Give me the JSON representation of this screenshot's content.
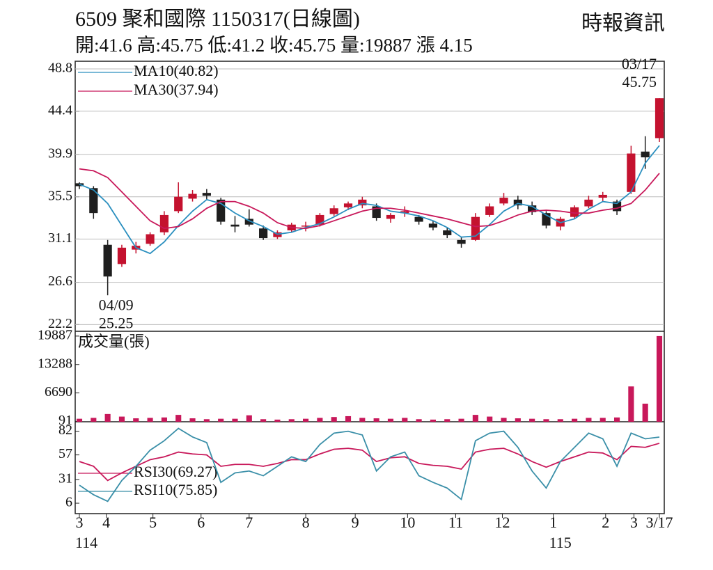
{
  "header": {
    "title": "6509 聚和國際 1150317(日線圖)",
    "source": "時報資訊",
    "quote": "開:41.6 高:45.75 低:41.2 收:45.75 量:19887 漲 4.15"
  },
  "chart_data": [
    {
      "type": "candlestick",
      "xlim": [
        0,
        41
      ],
      "ylim": [
        21.5,
        49.6
      ],
      "yticks": [
        48.8,
        44.4,
        39.9,
        35.5,
        31.1,
        26.6,
        22.2
      ],
      "grid": true,
      "up_color": "#c4122f",
      "down_color": "#1e1e1e",
      "legend": "upper left",
      "open": [
        36.9,
        36.4,
        30.5,
        28.5,
        30.0,
        30.6,
        31.8,
        34.0,
        35.3,
        35.9,
        35.2,
        32.6,
        33.2,
        32.2,
        31.3,
        32.0,
        32.5,
        32.6,
        33.7,
        34.4,
        34.6,
        34.5,
        33.2,
        33.8,
        33.4,
        32.7,
        32.0,
        31.0,
        31.0,
        33.6,
        34.8,
        35.2,
        34.6,
        33.8,
        32.4,
        33.4,
        34.5,
        35.4,
        35.0,
        36.0,
        40.2,
        41.6
      ],
      "high": [
        37.0,
        36.6,
        31.0,
        30.5,
        30.8,
        31.8,
        34.0,
        37.0,
        36.2,
        36.3,
        35.4,
        33.5,
        34.2,
        32.5,
        32.0,
        32.8,
        32.9,
        33.8,
        34.6,
        35.0,
        35.5,
        34.8,
        33.8,
        34.5,
        33.6,
        33.0,
        32.3,
        31.3,
        33.8,
        34.8,
        35.9,
        35.6,
        35.0,
        34.0,
        33.4,
        34.6,
        35.6,
        36.0,
        35.2,
        40.8,
        41.8,
        45.75
      ],
      "low": [
        36.3,
        33.2,
        25.25,
        28.2,
        29.6,
        30.4,
        31.5,
        33.8,
        35.0,
        35.2,
        32.6,
        31.8,
        32.4,
        31.0,
        31.1,
        31.8,
        31.9,
        32.4,
        33.5,
        34.1,
        34.3,
        33.0,
        32.8,
        33.4,
        32.6,
        32.0,
        31.2,
        30.2,
        30.9,
        33.4,
        34.6,
        34.2,
        33.6,
        32.2,
        32.0,
        33.2,
        34.3,
        35.0,
        33.6,
        35.8,
        38.4,
        41.2
      ],
      "close": [
        36.6,
        33.8,
        27.2,
        30.2,
        30.4,
        31.6,
        33.6,
        35.5,
        35.8,
        35.6,
        32.9,
        32.4,
        32.6,
        31.2,
        31.8,
        32.6,
        32.5,
        33.6,
        34.3,
        34.8,
        35.2,
        33.3,
        33.6,
        34.0,
        32.9,
        32.3,
        31.5,
        30.6,
        33.4,
        34.5,
        35.4,
        34.6,
        33.9,
        32.5,
        33.2,
        34.4,
        35.2,
        35.7,
        34.0,
        40.0,
        39.6,
        45.75
      ],
      "series": [
        {
          "name": "MA10(40.82)",
          "color": "#2a8fbf",
          "values": [
            36.8,
            36.2,
            34.8,
            32.5,
            30.2,
            29.6,
            30.8,
            32.5,
            34.0,
            35.2,
            34.8,
            33.8,
            33.0,
            32.4,
            31.6,
            31.8,
            32.3,
            32.7,
            33.4,
            34.2,
            34.8,
            34.6,
            34.0,
            33.8,
            33.5,
            33.0,
            32.3,
            31.3,
            31.4,
            32.6,
            34.0,
            34.8,
            34.5,
            33.6,
            32.8,
            33.2,
            34.2,
            35.0,
            34.8,
            36.0,
            39.0,
            40.82
          ]
        },
        {
          "name": "MA30(37.94)",
          "color": "#c8185a",
          "values": [
            38.4,
            38.2,
            37.5,
            36.0,
            34.5,
            33.0,
            32.2,
            32.4,
            33.2,
            34.3,
            35.0,
            35.0,
            34.5,
            33.8,
            32.8,
            32.3,
            32.2,
            32.5,
            33.0,
            33.5,
            34.0,
            34.3,
            34.3,
            34.1,
            33.8,
            33.5,
            33.2,
            32.8,
            32.4,
            32.5,
            33.0,
            33.6,
            34.0,
            34.1,
            34.0,
            33.8,
            33.8,
            34.1,
            34.3,
            34.8,
            36.2,
            37.94
          ]
        }
      ],
      "annotations": [
        [
          "03/17",
          "45.75"
        ],
        [
          "04/09",
          "25.25"
        ]
      ]
    },
    {
      "type": "bar",
      "title": "成交量(張)",
      "xlim": [
        0,
        41
      ],
      "ylim": [
        0,
        21000
      ],
      "yticks": [
        91,
        6690,
        13288,
        19887
      ],
      "color": "#c8185a",
      "values": [
        700,
        900,
        1800,
        1200,
        800,
        900,
        1000,
        1600,
        800,
        600,
        700,
        700,
        1500,
        600,
        500,
        600,
        700,
        900,
        1100,
        1300,
        900,
        800,
        700,
        900,
        600,
        500,
        600,
        700,
        1600,
        1200,
        900,
        800,
        700,
        600,
        600,
        700,
        900,
        900,
        1000,
        8200,
        4200,
        19887
      ]
    },
    {
      "type": "line",
      "xlim": [
        0,
        41
      ],
      "ylim": [
        -5,
        92
      ],
      "yticks": [
        6,
        31,
        57,
        82
      ],
      "legend": "lower left",
      "series": [
        {
          "name": "RSI30(69.27)",
          "color": "#c8185a",
          "values": [
            50,
            45,
            30,
            38,
            45,
            52,
            55,
            60,
            58,
            57,
            45,
            47,
            47,
            45,
            48,
            52,
            52,
            58,
            63,
            64,
            62,
            50,
            54,
            55,
            48,
            46,
            45,
            42,
            60,
            63,
            64,
            58,
            50,
            44,
            50,
            55,
            60,
            59,
            52,
            66,
            65,
            69.27
          ]
        },
        {
          "name": "RSI10(75.85)",
          "color": "#3a8fa8",
          "values": [
            25,
            15,
            8,
            30,
            45,
            62,
            72,
            85,
            76,
            70,
            28,
            38,
            40,
            35,
            45,
            55,
            50,
            68,
            80,
            82,
            78,
            40,
            55,
            60,
            35,
            28,
            22,
            10,
            72,
            80,
            82,
            65,
            40,
            22,
            50,
            65,
            80,
            74,
            45,
            80,
            74,
            75.85
          ]
        }
      ],
      "xticks": [
        {
          "value": 0,
          "label": "3"
        },
        {
          "value": 1.9,
          "label": "4"
        },
        {
          "value": 5.2,
          "label": "5"
        },
        {
          "value": 8.6,
          "label": "6"
        },
        {
          "value": 12.0,
          "label": "7"
        },
        {
          "value": 16.0,
          "label": "8"
        },
        {
          "value": 19.5,
          "label": "9"
        },
        {
          "value": 23.2,
          "label": "10"
        },
        {
          "value": 26.6,
          "label": "11"
        },
        {
          "value": 29.9,
          "label": "12"
        },
        {
          "value": 33.5,
          "label": "1"
        },
        {
          "value": 37.2,
          "label": "2"
        },
        {
          "value": 39.2,
          "label": "3"
        },
        {
          "value": 41,
          "label": "3/17"
        }
      ],
      "year_ticks": [
        {
          "value": 0,
          "label": "114"
        },
        {
          "value": 33.5,
          "label": "115"
        }
      ]
    }
  ]
}
